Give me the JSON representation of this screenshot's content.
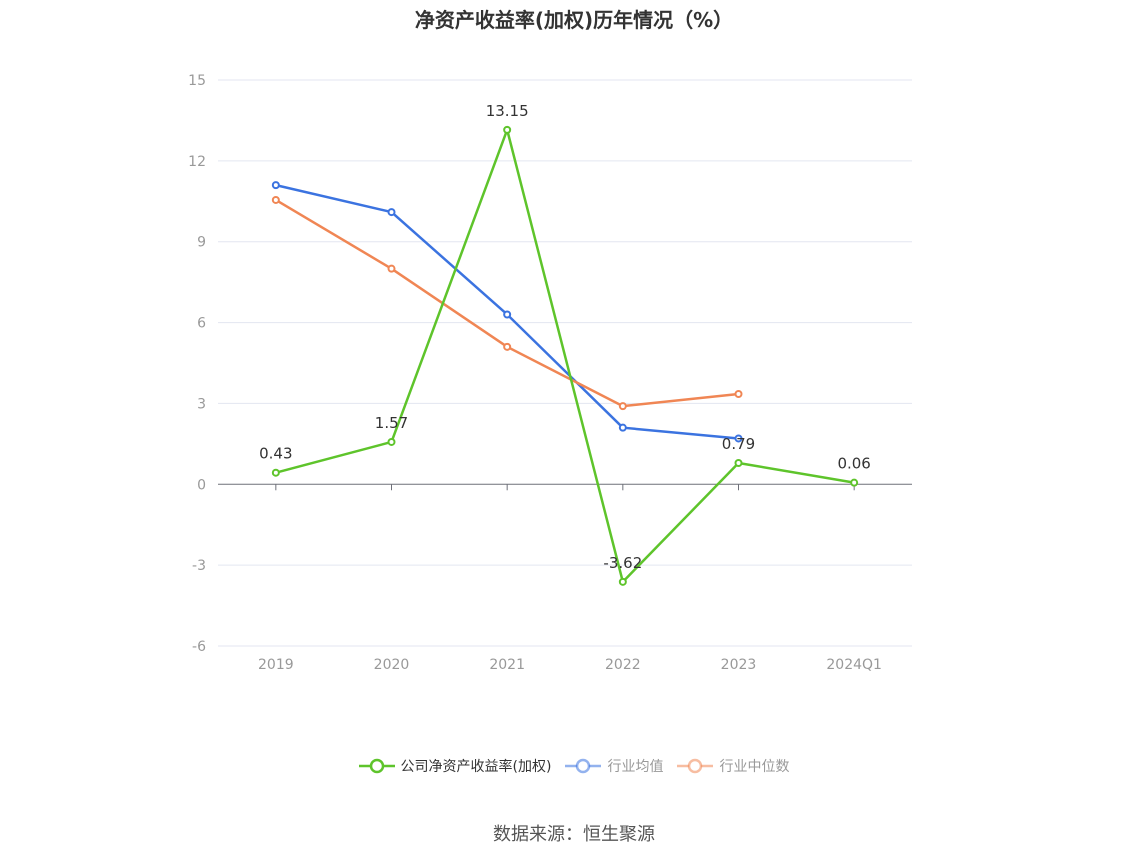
{
  "title": "净资产收益率(加权)历年情况（%）",
  "source": "数据来源：恒生聚源",
  "chart_data": {
    "type": "line",
    "title": "净资产收益率(加权)历年情况（%）",
    "categories": [
      "2019",
      "2020",
      "2021",
      "2022",
      "2023",
      "2024Q1"
    ],
    "ylim": [
      -6,
      15
    ],
    "yticks": [
      -6,
      -3,
      0,
      3,
      6,
      9,
      12,
      15
    ],
    "grid": true,
    "legend_position": "bottom",
    "series": [
      {
        "name": "公司净资产收益率(加权)",
        "color": "#5ec42b",
        "values": [
          0.43,
          1.57,
          13.15,
          -3.62,
          0.79,
          0.06
        ],
        "labels": [
          "0.43",
          "1.57",
          "13.15",
          "-3.62",
          "0.79",
          "0.06"
        ]
      },
      {
        "name": "行业均值",
        "color": "#3b73e0",
        "values": [
          11.1,
          10.1,
          6.3,
          2.1,
          1.7,
          null
        ]
      },
      {
        "name": "行业中位数",
        "color": "#f08654",
        "values": [
          10.55,
          8.0,
          5.1,
          2.9,
          3.35,
          null
        ]
      }
    ]
  }
}
